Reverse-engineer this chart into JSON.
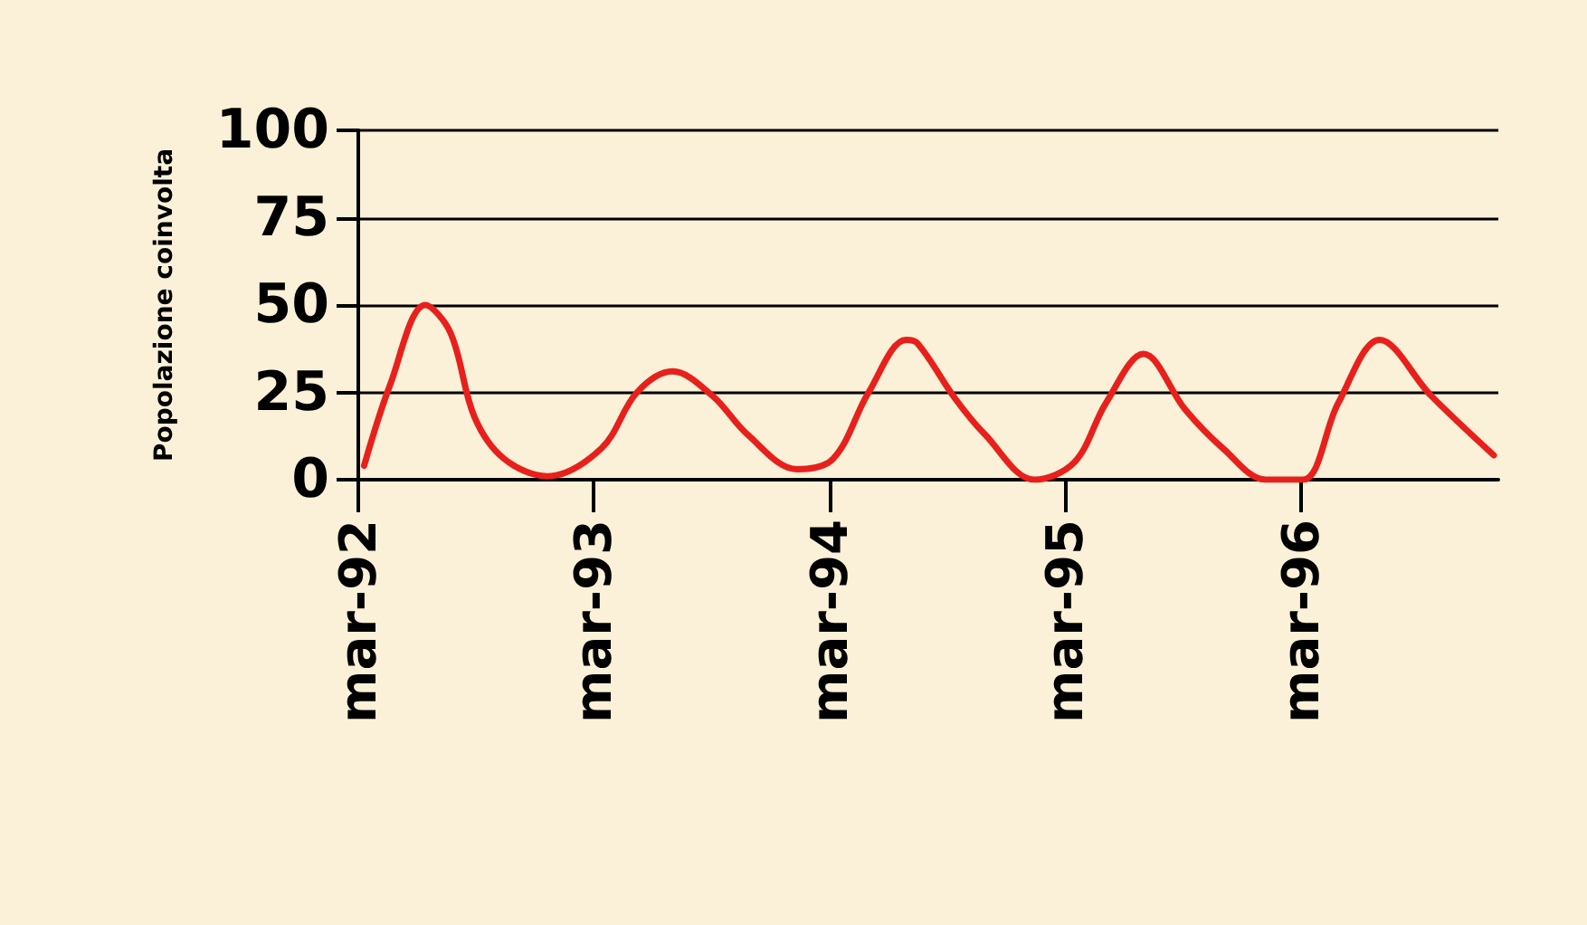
{
  "chart_data": {
    "type": "line",
    "ylabel": "Popolazione coinvolta",
    "x": [
      "1992-03-10",
      "1992-04-19",
      "1992-06-13",
      "1992-07-22",
      "1992-08-28",
      "1992-10-13",
      "1992-12-19",
      "1993-03-13",
      "1993-05-07",
      "1993-07-01",
      "1993-09-01",
      "1993-10-25",
      "1994-01-10",
      "1994-03-07",
      "1994-05-01",
      "1994-06-28",
      "1994-07-16",
      "1994-09-13",
      "1994-10-28",
      "1995-01-13",
      "1995-03-16",
      "1995-05-04",
      "1995-07-01",
      "1995-09-04",
      "1995-11-01",
      "1996-01-07",
      "1996-03-04",
      "1996-04-28",
      "1996-07-01",
      "1996-09-19",
      "1996-12-25"
    ],
    "series": [
      {
        "color": "#e8201c",
        "values": [
          4,
          27,
          50,
          42,
          18,
          6,
          1,
          9,
          25,
          31,
          24,
          13,
          3,
          6,
          25,
          40,
          39,
          23,
          13,
          0,
          5,
          22,
          36,
          20,
          9,
          0,
          0,
          22,
          40,
          24,
          7
        ]
      }
    ],
    "xlim": [
      "1992-03-01",
      "1997-01-01"
    ],
    "xticks": [
      {
        "value": "1992-03-01",
        "label": "mar-92"
      },
      {
        "value": "1993-03-01",
        "label": "mar-93"
      },
      {
        "value": "1994-03-01",
        "label": "mar-94"
      },
      {
        "value": "1995-03-01",
        "label": "mar-95"
      },
      {
        "value": "1996-03-01",
        "label": "mar-96"
      }
    ],
    "ylim": [
      0,
      100
    ],
    "yticks": [
      0,
      25,
      50,
      75,
      100
    ],
    "grid": "y",
    "marker": "none",
    "line_style": "solid"
  }
}
